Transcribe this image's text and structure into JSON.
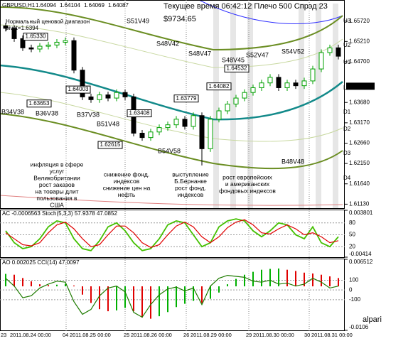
{
  "chart_data": [
    {
      "type": "candlestick",
      "title": "GBPUSD,H1",
      "quote": [
        1.64094,
        1.64104,
        1.64069,
        1.64087
      ],
      "status": "Текущее время 06:42:12 Плечо 500 Спрэд 23",
      "balance": "$9734.65",
      "range_label": "Нормальный ценовой диапазон",
      "pivot_label": "pivot=1.6394",
      "up_color": "#00a000",
      "down_color": "#000000",
      "ylim": [
        1.6103,
        1.6616
      ],
      "yticks": [
        {
          "value": 1.6572,
          "label": "1.65720"
        },
        {
          "value": 1.6521,
          "label": "1.65210"
        },
        {
          "value": 1.647,
          "label": "1.64700"
        },
        {
          "value": 1.6368,
          "label": "1.63680"
        },
        {
          "value": 1.6317,
          "label": "1.63170"
        },
        {
          "value": 1.6266,
          "label": "1.62660"
        },
        {
          "value": 1.6215,
          "label": "1.62150"
        },
        {
          "value": 1.6164,
          "label": "1.61640"
        },
        {
          "value": 1.6113,
          "label": "1.61130"
        }
      ],
      "last_price": 1.64087,
      "open": [
        1.656,
        1.6554,
        1.6528,
        1.6505,
        1.6502,
        1.6509,
        1.6512,
        1.6519,
        1.6523,
        1.6449,
        1.6382,
        1.6375,
        1.6387,
        1.6379,
        1.6393,
        1.6382,
        1.6291,
        1.628,
        1.6294,
        1.6305,
        1.6312,
        1.6326,
        1.6308,
        1.6335,
        1.6252,
        1.6326,
        1.6347,
        1.6364,
        1.6379,
        1.6393,
        1.6405,
        1.6417,
        1.6431,
        1.6405,
        1.6417,
        1.641,
        1.6422,
        1.6452,
        1.6493,
        1.6505
      ],
      "high": [
        1.6568,
        1.6562,
        1.6536,
        1.6513,
        1.6517,
        1.652,
        1.6527,
        1.6531,
        1.6531,
        1.6457,
        1.639,
        1.6395,
        1.6395,
        1.6401,
        1.6401,
        1.639,
        1.6299,
        1.6302,
        1.6313,
        1.632,
        1.6334,
        1.6334,
        1.6343,
        1.6343,
        1.6334,
        1.6355,
        1.6372,
        1.6387,
        1.6401,
        1.6413,
        1.6425,
        1.6439,
        1.6439,
        1.6425,
        1.6425,
        1.643,
        1.646,
        1.6501,
        1.6513,
        1.6513
      ],
      "low": [
        1.6546,
        1.652,
        1.6497,
        1.6494,
        1.6494,
        1.6501,
        1.6504,
        1.6511,
        1.6441,
        1.6374,
        1.6367,
        1.6367,
        1.6371,
        1.6371,
        1.6374,
        1.6283,
        1.6272,
        1.6272,
        1.6286,
        1.6297,
        1.6304,
        1.63,
        1.63,
        1.621,
        1.6244,
        1.6318,
        1.6339,
        1.6356,
        1.6371,
        1.6385,
        1.6397,
        1.6409,
        1.6397,
        1.6397,
        1.6402,
        1.6402,
        1.6414,
        1.6444,
        1.6485,
        1.6476
      ],
      "close": [
        1.6554,
        1.6528,
        1.6505,
        1.6502,
        1.6509,
        1.6512,
        1.6519,
        1.6523,
        1.6449,
        1.6382,
        1.6375,
        1.6387,
        1.6379,
        1.6393,
        1.6382,
        1.6291,
        1.628,
        1.6294,
        1.6305,
        1.6312,
        1.6326,
        1.6308,
        1.6335,
        1.6252,
        1.6326,
        1.6347,
        1.6364,
        1.6379,
        1.6393,
        1.6405,
        1.6417,
        1.6431,
        1.6405,
        1.6417,
        1.641,
        1.6422,
        1.6452,
        1.6493,
        1.6505,
        1.6484
      ],
      "price_labels": [
        {
          "value": 1.6533,
          "label": "1.65330"
        },
        1.63653,
        1.64003,
        1.62615,
        1.63408,
        1.63779,
        1.64082,
        1.64532
      ],
      "level_labels": [
        "S51V49",
        "S48V42",
        "S48V47",
        "S48V45",
        "S52V47",
        "S54V52",
        "B34V38",
        "B36V38",
        "B37V38",
        "B51V48",
        "B54V58",
        "B48V48"
      ],
      "pivot_labels": [
        "U3",
        "U2",
        "U1",
        "LB",
        "D1",
        "D2",
        "D3",
        "D4"
      ],
      "annotations": [
        [
          "инфляция в сфере",
          "услуг",
          "Великобритании",
          "рост заказов",
          "на товары длит",
          "пользования в",
          "США"
        ],
        [
          "снижение фонд.",
          "индексов",
          "снижение цен на",
          "нефть"
        ],
        [
          "выступление",
          "Б.Бернанке",
          "рост фонд.",
          "индексов"
        ],
        [
          "рост европейских",
          "и американских",
          "фондовых индексов"
        ]
      ]
    },
    {
      "type": "line",
      "title": "AC -0.0006563  Stoch(5,3,3) 57.9378 47.0852",
      "ylim": [
        -6.5,
        111.8
      ],
      "yticks": [
        80,
        50,
        20
      ],
      "y2lim": [
        -0.00414,
        0.003801
      ],
      "y2ticks": [
        0.003801,
        -0.00414
      ],
      "series": [
        {
          "color": "#44c000",
          "values": [
            60,
            30,
            15,
            20,
            40,
            70,
            85,
            80,
            40,
            15,
            10,
            35,
            70,
            80,
            60,
            30,
            10,
            15,
            40,
            75,
            85,
            80,
            50,
            20,
            30,
            70,
            85,
            90,
            85,
            60,
            45,
            60,
            80,
            75,
            50,
            40,
            70,
            30,
            20,
            45
          ]
        },
        {
          "color": "#e00000",
          "values": [
            55,
            40,
            25,
            22,
            30,
            55,
            75,
            82,
            65,
            40,
            20,
            25,
            50,
            72,
            72,
            55,
            30,
            18,
            25,
            50,
            72,
            82,
            70,
            45,
            30,
            45,
            68,
            82,
            88,
            75,
            55,
            52,
            65,
            75,
            65,
            50,
            55,
            45,
            30,
            35
          ]
        }
      ]
    },
    {
      "type": "line",
      "title": "AO 0.002025  CCI(14) 47.0097",
      "ylim": [
        -415,
        315
      ],
      "yticks": [
        100,
        0,
        -100
      ],
      "y2lim": [
        -0.0106,
        0.006512
      ],
      "y2ticks": [
        0.006512,
        -0.0106
      ],
      "series": [
        {
          "type": "bar",
          "axis": "y2",
          "up_color": "#00b000",
          "down_color": "#e00000",
          "values": [
            0.003,
            0.0028,
            0.002,
            0.0012,
            0.0005,
            0.0003,
            0.0004,
            0.0006,
            0.0002,
            -0.002,
            -0.004,
            -0.0055,
            -0.006,
            -0.0058,
            -0.0052,
            -0.006,
            -0.0075,
            -0.0078,
            -0.0072,
            -0.0062,
            -0.005,
            -0.0042,
            -0.0035,
            -0.004,
            -0.003,
            -0.0015,
            0.0005,
            0.0018,
            0.0028,
            0.0035,
            0.004,
            0.0042,
            0.0043,
            0.004,
            0.0037,
            0.0033,
            0.0031,
            0.0028,
            0.0024,
            0.002
          ]
        },
        {
          "color": "#1e7b00",
          "values": [
            120,
            40,
            -80,
            -60,
            20,
            60,
            90,
            80,
            -120,
            -250,
            -200,
            -60,
            20,
            40,
            -20,
            -230,
            -280,
            -150,
            -50,
            10,
            30,
            -10,
            20,
            -150,
            40,
            120,
            150,
            140,
            130,
            90,
            80,
            100,
            60,
            70,
            40,
            60,
            120,
            80,
            20,
            40
          ]
        }
      ],
      "x_labels": [
        "23",
        "2011.08.24 00:00",
        "04",
        "2011.08.25 00:00",
        "25",
        "2011.08.26 00:00",
        "26",
        "2011.08.29 00:00",
        "29",
        "2011.08.30 00:00",
        "30",
        "2011.08.31 00:00"
      ],
      "watermark": "alpari"
    }
  ]
}
